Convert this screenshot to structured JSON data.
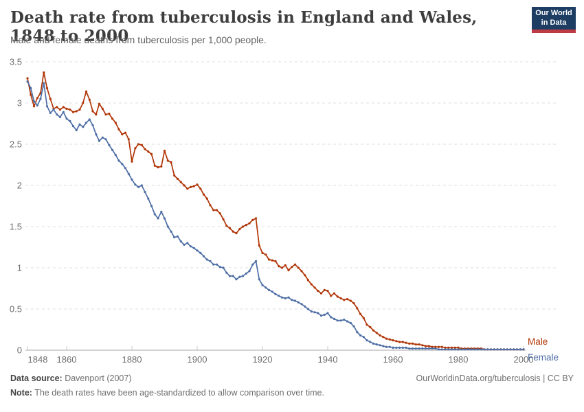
{
  "header": {
    "title": "Death rate from tuberculosis in England and Wales, 1848 to 2000",
    "subtitle": "Male and female deaths from tuberculosis per 1,000 people."
  },
  "logo": {
    "line1": "Our World",
    "line2": "in Data",
    "bg_color": "#1d3d63",
    "bar_color": "#bf3b43"
  },
  "chart_data": {
    "type": "line",
    "title": "Death rate from tuberculosis in England and Wales, 1848 to 2000",
    "xlabel": "",
    "ylabel": "Deaths from tuberculosis per 1,000 people",
    "years": {
      "from": 1848,
      "to": 2000,
      "step": 1
    },
    "xlim": [
      1848,
      2000
    ],
    "ylim": [
      0,
      3.5
    ],
    "xticks": [
      1848,
      1860,
      1880,
      1900,
      1920,
      1940,
      1960,
      1980,
      2000
    ],
    "yticks": [
      0,
      0.5,
      1,
      1.5,
      2,
      2.5,
      3,
      3.5
    ],
    "grid": "horizontal-dashed",
    "legend_position": "right-end-of-lines",
    "marker": "point-per-year",
    "series": [
      {
        "name": "Male",
        "color": "#b13507",
        "values": [
          3.3,
          3.1,
          2.96,
          3.06,
          3.12,
          3.37,
          3.18,
          3.05,
          2.93,
          2.95,
          2.92,
          2.95,
          2.93,
          2.92,
          2.89,
          2.9,
          2.92,
          3.0,
          3.14,
          3.04,
          2.9,
          2.86,
          2.99,
          2.93,
          2.86,
          2.87,
          2.81,
          2.76,
          2.68,
          2.62,
          2.64,
          2.56,
          2.29,
          2.45,
          2.5,
          2.49,
          2.44,
          2.41,
          2.38,
          2.24,
          2.22,
          2.23,
          2.42,
          2.3,
          2.28,
          2.12,
          2.08,
          2.04,
          2.0,
          1.96,
          1.98,
          1.99,
          2.01,
          1.96,
          1.89,
          1.84,
          1.76,
          1.7,
          1.7,
          1.66,
          1.59,
          1.51,
          1.48,
          1.44,
          1.42,
          1.47,
          1.5,
          1.52,
          1.54,
          1.58,
          1.6,
          1.27,
          1.18,
          1.16,
          1.1,
          1.09,
          1.08,
          1.02,
          1.0,
          1.03,
          0.97,
          1.01,
          1.04,
          1.0,
          0.96,
          0.91,
          0.85,
          0.8,
          0.76,
          0.72,
          0.69,
          0.73,
          0.72,
          0.66,
          0.69,
          0.65,
          0.63,
          0.61,
          0.62,
          0.6,
          0.57,
          0.51,
          0.44,
          0.39,
          0.31,
          0.28,
          0.24,
          0.21,
          0.18,
          0.16,
          0.14,
          0.13,
          0.12,
          0.11,
          0.1,
          0.1,
          0.09,
          0.08,
          0.08,
          0.07,
          0.07,
          0.06,
          0.05,
          0.05,
          0.04,
          0.04,
          0.04,
          0.04,
          0.03,
          0.03,
          0.03,
          0.03,
          0.03,
          0.02,
          0.02,
          0.02,
          0.02,
          0.02,
          0.02,
          0.02,
          0.01,
          0.01,
          0.01,
          0.01,
          0.01,
          0.01,
          0.01,
          0.01,
          0.01,
          0.01,
          0.01,
          0.01,
          0.01
        ]
      },
      {
        "name": "Female",
        "color": "#4e6ea5",
        "values": [
          3.26,
          3.18,
          3.02,
          2.97,
          3.05,
          3.24,
          2.96,
          2.88,
          2.92,
          2.86,
          2.83,
          2.89,
          2.81,
          2.78,
          2.72,
          2.67,
          2.74,
          2.71,
          2.76,
          2.8,
          2.73,
          2.62,
          2.54,
          2.58,
          2.56,
          2.49,
          2.43,
          2.37,
          2.3,
          2.26,
          2.21,
          2.14,
          2.07,
          2.01,
          1.98,
          2.0,
          1.92,
          1.84,
          1.75,
          1.65,
          1.6,
          1.68,
          1.6,
          1.5,
          1.44,
          1.37,
          1.38,
          1.32,
          1.28,
          1.3,
          1.26,
          1.24,
          1.21,
          1.18,
          1.14,
          1.1,
          1.08,
          1.04,
          1.04,
          1.01,
          1.0,
          0.94,
          0.9,
          0.9,
          0.86,
          0.89,
          0.9,
          0.93,
          0.96,
          1.04,
          1.08,
          0.86,
          0.79,
          0.76,
          0.73,
          0.71,
          0.68,
          0.66,
          0.64,
          0.63,
          0.64,
          0.61,
          0.6,
          0.58,
          0.56,
          0.53,
          0.5,
          0.47,
          0.46,
          0.45,
          0.42,
          0.43,
          0.45,
          0.4,
          0.38,
          0.36,
          0.36,
          0.37,
          0.35,
          0.33,
          0.29,
          0.22,
          0.18,
          0.16,
          0.12,
          0.1,
          0.08,
          0.07,
          0.06,
          0.05,
          0.04,
          0.04,
          0.03,
          0.03,
          0.03,
          0.03,
          0.03,
          0.02,
          0.02,
          0.02,
          0.02,
          0.02,
          0.02,
          0.02,
          0.02,
          0.02,
          0.01,
          0.01,
          0.01,
          0.01,
          0.01,
          0.01,
          0.01,
          0.01,
          0.01,
          0.01,
          0.01,
          0.01,
          0.01,
          0.01,
          0.01,
          0.01,
          0.01,
          0.01,
          0.01,
          0.01,
          0.01,
          0.01,
          0.01,
          0.01,
          0.01,
          0.01,
          0.01
        ]
      }
    ],
    "style": {
      "grid_color": "#dcdcdc",
      "axis_color": "#a5a5a5",
      "tick_label_color": "#6e6e6e"
    }
  },
  "footer": {
    "source_label": "Data source:",
    "source_value": " Davenport (2007)",
    "right": "OurWorldinData.org/tuberculosis | CC BY",
    "note_label": "Note:",
    "note_value": " The death rates have been age-standardized to allow comparison over time."
  }
}
